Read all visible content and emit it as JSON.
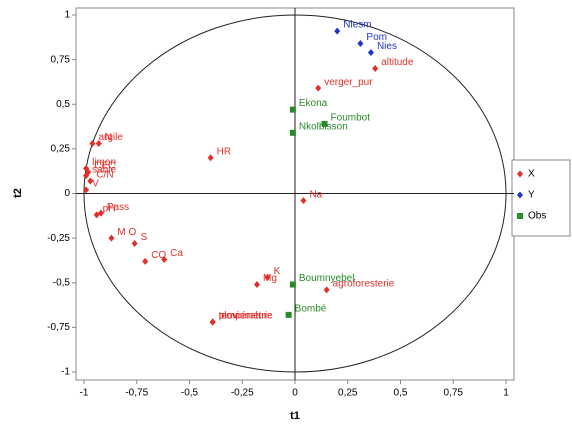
{
  "chart_data": {
    "type": "scatter",
    "x_label": "t1",
    "y_label": "t2",
    "xlim": [
      -1,
      1
    ],
    "ylim": [
      -1,
      1
    ],
    "xticks": [
      -1,
      {
        "value": -0.75,
        "label": "-0,75"
      },
      {
        "value": -0.5,
        "label": "-0,5"
      },
      {
        "value": -0.25,
        "label": "-0,25"
      },
      0,
      {
        "value": 0.25,
        "label": "0,25"
      },
      {
        "value": 0.5,
        "label": "0,5"
      },
      {
        "value": 0.75,
        "label": "0,75"
      },
      1
    ],
    "yticks": [
      -1,
      {
        "value": -0.75,
        "label": "-0,75"
      },
      {
        "value": -0.5,
        "label": "-0,5"
      },
      {
        "value": -0.25,
        "label": "-0,25"
      },
      0,
      {
        "value": 0.25,
        "label": "0,25"
      },
      {
        "value": 0.5,
        "label": "0,5"
      },
      {
        "value": 0.75,
        "label": "0,75"
      },
      1
    ],
    "series": [
      {
        "name": "X",
        "color": "#e0302c",
        "marker": "diamond",
        "labels": [
          "altitude",
          "verger_pur",
          "HR",
          "argile",
          "limon",
          "N",
          "CEC",
          "sable",
          "V",
          "C/N",
          "pH",
          "Pass",
          "M O",
          "S",
          "CO",
          "Ca",
          "pluviométrie",
          "température",
          "mov",
          "Mg",
          "K",
          "Na",
          "agroforesterie"
        ],
        "x": [
          0.38,
          0.11,
          -0.4,
          -0.96,
          -0.99,
          -0.93,
          -0.98,
          -0.99,
          -0.99,
          -0.97,
          -0.94,
          -0.92,
          -0.87,
          -0.76,
          -0.71,
          -0.62,
          -0.39,
          -0.39,
          -0.39,
          -0.18,
          -0.13,
          0.04,
          0.15
        ],
        "y": [
          0.7,
          0.59,
          0.2,
          0.28,
          0.14,
          0.28,
          0.12,
          0.1,
          0.02,
          0.07,
          -0.12,
          -0.11,
          -0.25,
          -0.28,
          -0.38,
          -0.37,
          -0.72,
          -0.72,
          -0.72,
          -0.51,
          -0.47,
          -0.04,
          -0.54
        ]
      },
      {
        "name": "Y",
        "color": "#2233cc",
        "marker": "diamond",
        "labels": [
          "Niesm",
          "Pom",
          "Nies"
        ],
        "x": [
          0.2,
          0.31,
          0.36
        ],
        "y": [
          0.91,
          0.84,
          0.79
        ]
      },
      {
        "name": "Obs",
        "color": "#2a8a2a",
        "marker": "square",
        "labels": [
          "Ekona",
          "Foumbot",
          "Nkolbisson",
          "Boumnyebel",
          "Bombé"
        ],
        "x": [
          -0.01,
          0.14,
          -0.01,
          -0.01,
          -0.03
        ],
        "y": [
          0.47,
          0.39,
          0.34,
          -0.51,
          -0.68
        ]
      }
    ]
  }
}
